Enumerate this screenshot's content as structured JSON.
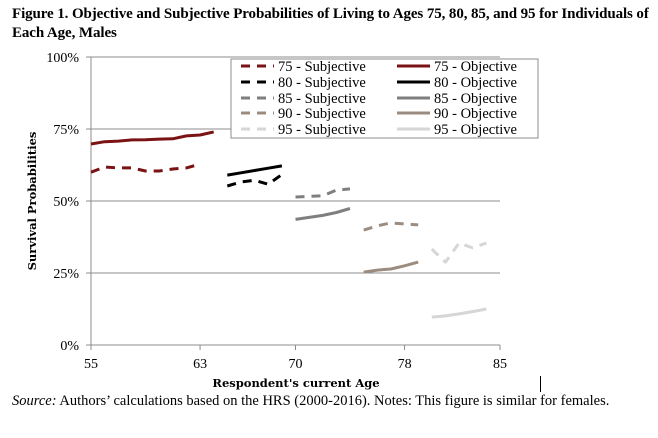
{
  "figure": {
    "title": "Figure 1. Objective and Subjective Probabilities of Living to Ages 75, 80, 85, and 95 for Individuals of Each Age, Males",
    "source_label": "Source:",
    "source_text": " Authors’ calculations based on the HRS (2000-2016). Notes: This figure is similar for females."
  },
  "chart_data": {
    "type": "line",
    "title": "",
    "xlabel": "Respondent's current Age",
    "ylabel": "Survival Probabilities",
    "xlim": [
      55,
      85
    ],
    "ylim": [
      0,
      100
    ],
    "x_ticks": [
      55,
      63,
      70,
      78,
      85
    ],
    "x_tick_labels": [
      "55",
      "63",
      "70",
      "78",
      "85"
    ],
    "y_ticks": [
      0,
      25,
      50,
      75,
      100
    ],
    "y_tick_labels": [
      "0%",
      "25%",
      "50%",
      "75%",
      "100%"
    ],
    "grid": "horizontal",
    "legend_position": "top-right",
    "series": [
      {
        "name": "75 - Subjective",
        "color": "#7b1214",
        "style": "dashed",
        "x": [
          55,
          56,
          57,
          58,
          59,
          60,
          61,
          62,
          63
        ],
        "values": [
          60.0,
          61.8,
          61.5,
          61.5,
          60.4,
          60.4,
          61.1,
          61.5,
          62.8
        ]
      },
      {
        "name": "75 - Objective",
        "color": "#7b1214",
        "style": "solid",
        "x": [
          55,
          56,
          57,
          58,
          59,
          60,
          61,
          62,
          63,
          64
        ],
        "values": [
          69.8,
          70.6,
          70.8,
          71.2,
          71.3,
          71.5,
          71.6,
          72.6,
          72.9,
          74.0
        ]
      },
      {
        "name": "80 - Subjective",
        "color": "#000000",
        "style": "dashed",
        "x": [
          65,
          66,
          67,
          68,
          69
        ],
        "values": [
          55.2,
          56.6,
          57.2,
          55.8,
          59.2
        ]
      },
      {
        "name": "80 - Objective",
        "color": "#000000",
        "style": "solid",
        "x": [
          65,
          66,
          67,
          68,
          69
        ],
        "values": [
          59.0,
          59.8,
          60.6,
          61.4,
          62.2
        ]
      },
      {
        "name": "85 - Subjective",
        "color": "#7f7f7f",
        "style": "dashed",
        "x": [
          70,
          71,
          72,
          73,
          74
        ],
        "values": [
          51.4,
          51.6,
          51.8,
          53.8,
          54.2
        ]
      },
      {
        "name": "85 - Objective",
        "color": "#7f7f7f",
        "style": "solid",
        "x": [
          70,
          71,
          72,
          73,
          74
        ],
        "values": [
          43.6,
          44.3,
          45.0,
          46.0,
          47.4
        ]
      },
      {
        "name": "90 - Subjective",
        "color": "#9c8c80",
        "style": "dashed",
        "x": [
          75,
          76,
          77,
          78,
          79
        ],
        "values": [
          39.9,
          41.4,
          42.4,
          42.0,
          41.7
        ]
      },
      {
        "name": "90 - Objective",
        "color": "#9c8c80",
        "style": "solid",
        "x": [
          75,
          76,
          77,
          78,
          79
        ],
        "values": [
          25.3,
          26.0,
          26.4,
          27.5,
          28.8
        ]
      },
      {
        "name": "95 - Subjective",
        "color": "#d6d6d6",
        "style": "dashed",
        "x": [
          80,
          81,
          82,
          83,
          84
        ],
        "values": [
          33.3,
          28.8,
          35.4,
          33.7,
          35.4
        ]
      },
      {
        "name": "95 - Objective",
        "color": "#d6d6d6",
        "style": "solid",
        "x": [
          80,
          81,
          82,
          83,
          84
        ],
        "values": [
          9.7,
          10.1,
          10.8,
          11.6,
          12.5
        ]
      }
    ]
  }
}
